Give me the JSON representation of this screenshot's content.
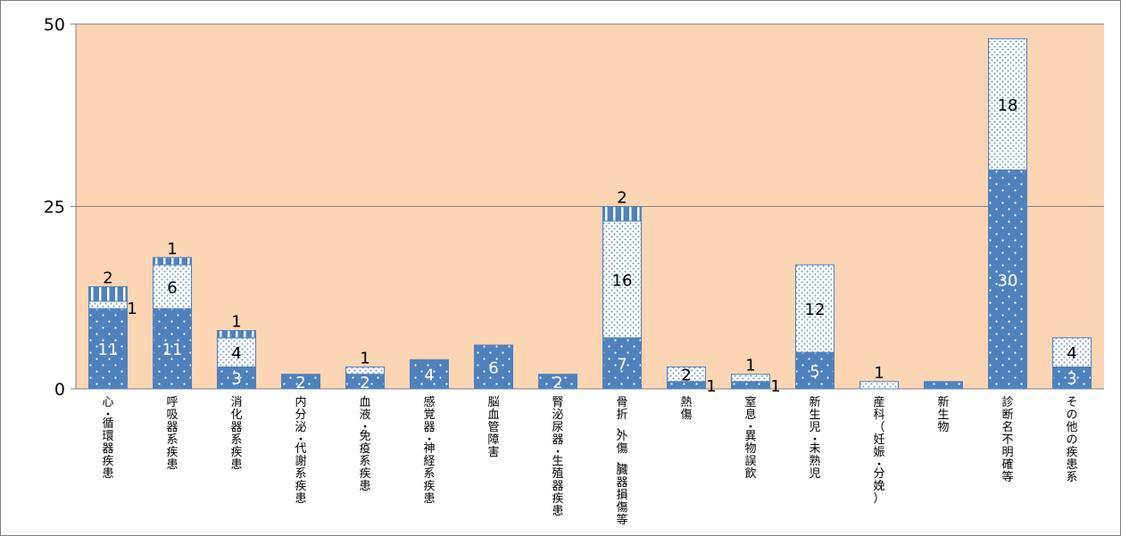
{
  "chart_data": {
    "type": "bar",
    "stacked": true,
    "title": "",
    "xlabel": "",
    "ylabel": "",
    "ylim": [
      0,
      50
    ],
    "yticks": [
      0,
      25,
      50
    ],
    "grid": true,
    "legend": "none",
    "categories": [
      "心・循環器疾患",
      "呼吸器系疾患",
      "消化器系疾患",
      "内分泌・代謝系疾患",
      "血液・免疫系疾患",
      "感覚器・神経系疾患",
      "脳血管障害",
      "腎泌尿器・生殖器疾患",
      "骨折、外傷、臓器損傷等",
      "熱傷",
      "窒息・異物誤飲",
      "新生児・未熟児",
      "産科（妊娠・分娩）",
      "新生物",
      "診断名不明確等",
      "その他の疾患系"
    ],
    "series": [
      {
        "values": [
          11,
          11,
          3,
          2,
          2,
          4,
          6,
          2,
          7,
          1,
          1,
          5,
          0,
          1,
          30,
          3
        ],
        "color": "#4f81bd",
        "pattern": "dots-white"
      },
      {
        "values": [
          1,
          6,
          4,
          0,
          1,
          0,
          0,
          0,
          16,
          2,
          1,
          12,
          1,
          0,
          18,
          4
        ],
        "color": "#ffffff",
        "pattern": "dots-blue"
      },
      {
        "values": [
          2,
          1,
          1,
          0,
          0,
          0,
          0,
          0,
          2,
          0,
          0,
          0,
          0,
          0,
          0,
          0
        ],
        "color": "#4f81bd",
        "pattern": "vertical-white"
      }
    ],
    "data_labels": [
      [
        11,
        11,
        3,
        2,
        2,
        4,
        6,
        2,
        7,
        1,
        1,
        5,
        null,
        null,
        30,
        3
      ],
      [
        1,
        6,
        4,
        null,
        1,
        null,
        null,
        null,
        16,
        2,
        1,
        12,
        1,
        null,
        18,
        4
      ],
      [
        2,
        1,
        1,
        null,
        null,
        null,
        null,
        null,
        2,
        null,
        null,
        null,
        null,
        null,
        null,
        null
      ]
    ],
    "colors": {
      "plot_bg": "#fcd5b4",
      "bar": "#4f81bd",
      "grid": "#808080"
    }
  }
}
